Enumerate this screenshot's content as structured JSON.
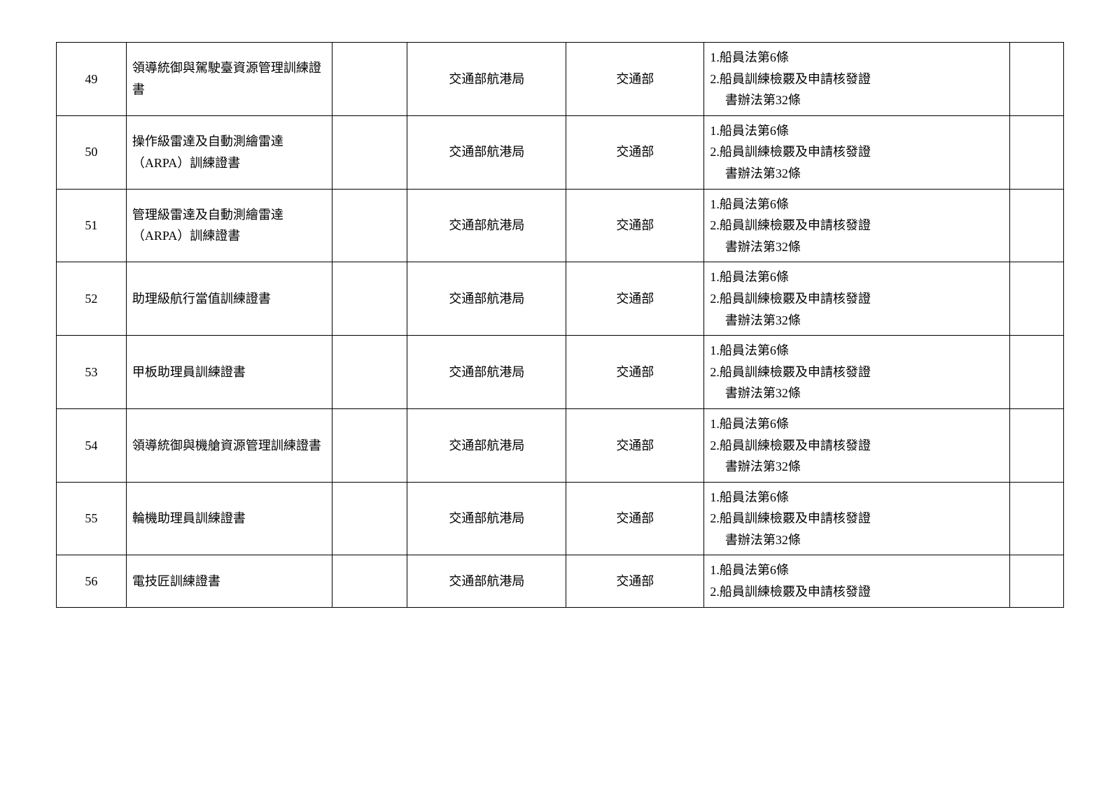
{
  "table": {
    "columns": [
      {
        "key": "num",
        "width_pct": 5.5,
        "align": "center"
      },
      {
        "key": "name",
        "width_pct": 18.5,
        "align": "left"
      },
      {
        "key": "empty",
        "width_pct": 6,
        "align": "left"
      },
      {
        "key": "org",
        "width_pct": 14,
        "align": "center"
      },
      {
        "key": "dept",
        "width_pct": 12,
        "align": "center"
      },
      {
        "key": "law",
        "width_pct": 28,
        "align": "left"
      },
      {
        "key": "last",
        "width_pct": 4,
        "align": "left"
      }
    ],
    "rows": [
      {
        "num": "49",
        "name": "領導統御與駕駛臺資源管理訓練證書",
        "empty": "",
        "org": "交通部航港局",
        "dept": "交通部",
        "law": {
          "line1": "1.船員法第6條",
          "line2": "2.船員訓練檢覈及申請核發證",
          "line3": "書辦法第32條"
        },
        "last": ""
      },
      {
        "num": "50",
        "name": "操作級雷達及自動測繪雷達（ARPA）訓練證書",
        "empty": "",
        "org": "交通部航港局",
        "dept": "交通部",
        "law": {
          "line1": "1.船員法第6條",
          "line2": "2.船員訓練檢覈及申請核發證",
          "line3": "書辦法第32條"
        },
        "last": ""
      },
      {
        "num": "51",
        "name": "管理級雷達及自動測繪雷達（ARPA）訓練證書",
        "empty": "",
        "org": "交通部航港局",
        "dept": "交通部",
        "law": {
          "line1": "1.船員法第6條",
          "line2": "2.船員訓練檢覈及申請核發證",
          "line3": "書辦法第32條"
        },
        "last": ""
      },
      {
        "num": "52",
        "name": "助理級航行當值訓練證書",
        "empty": "",
        "org": "交通部航港局",
        "dept": "交通部",
        "law": {
          "line1": "1.船員法第6條",
          "line2": "2.船員訓練檢覈及申請核發證",
          "line3": "書辦法第32條"
        },
        "last": ""
      },
      {
        "num": "53",
        "name": "甲板助理員訓練證書",
        "empty": "",
        "org": "交通部航港局",
        "dept": "交通部",
        "law": {
          "line1": "1.船員法第6條",
          "line2": "2.船員訓練檢覈及申請核發證",
          "line3": "書辦法第32條"
        },
        "last": ""
      },
      {
        "num": "54",
        "name": "領導統御與機艙資源管理訓練證書",
        "empty": "",
        "org": "交通部航港局",
        "dept": "交通部",
        "law": {
          "line1": "1.船員法第6條",
          "line2": "2.船員訓練檢覈及申請核發證",
          "line3": "書辦法第32條"
        },
        "last": ""
      },
      {
        "num": "55",
        "name": "輪機助理員訓練證書",
        "empty": "",
        "org": "交通部航港局",
        "dept": "交通部",
        "law": {
          "line1": "1.船員法第6條",
          "line2": "2.船員訓練檢覈及申請核發證",
          "line3": "書辦法第32條"
        },
        "last": ""
      },
      {
        "num": "56",
        "name": "電技匠訓練證書",
        "empty": "",
        "org": "交通部航港局",
        "dept": "交通部",
        "law": {
          "line1": "1.船員法第6條",
          "line2": "2.船員訓練檢覈及申請核發證",
          "line3": ""
        },
        "last": ""
      }
    ],
    "border_color": "#000000",
    "background_color": "#ffffff",
    "text_color": "#000000",
    "font_size_pt": 14
  }
}
